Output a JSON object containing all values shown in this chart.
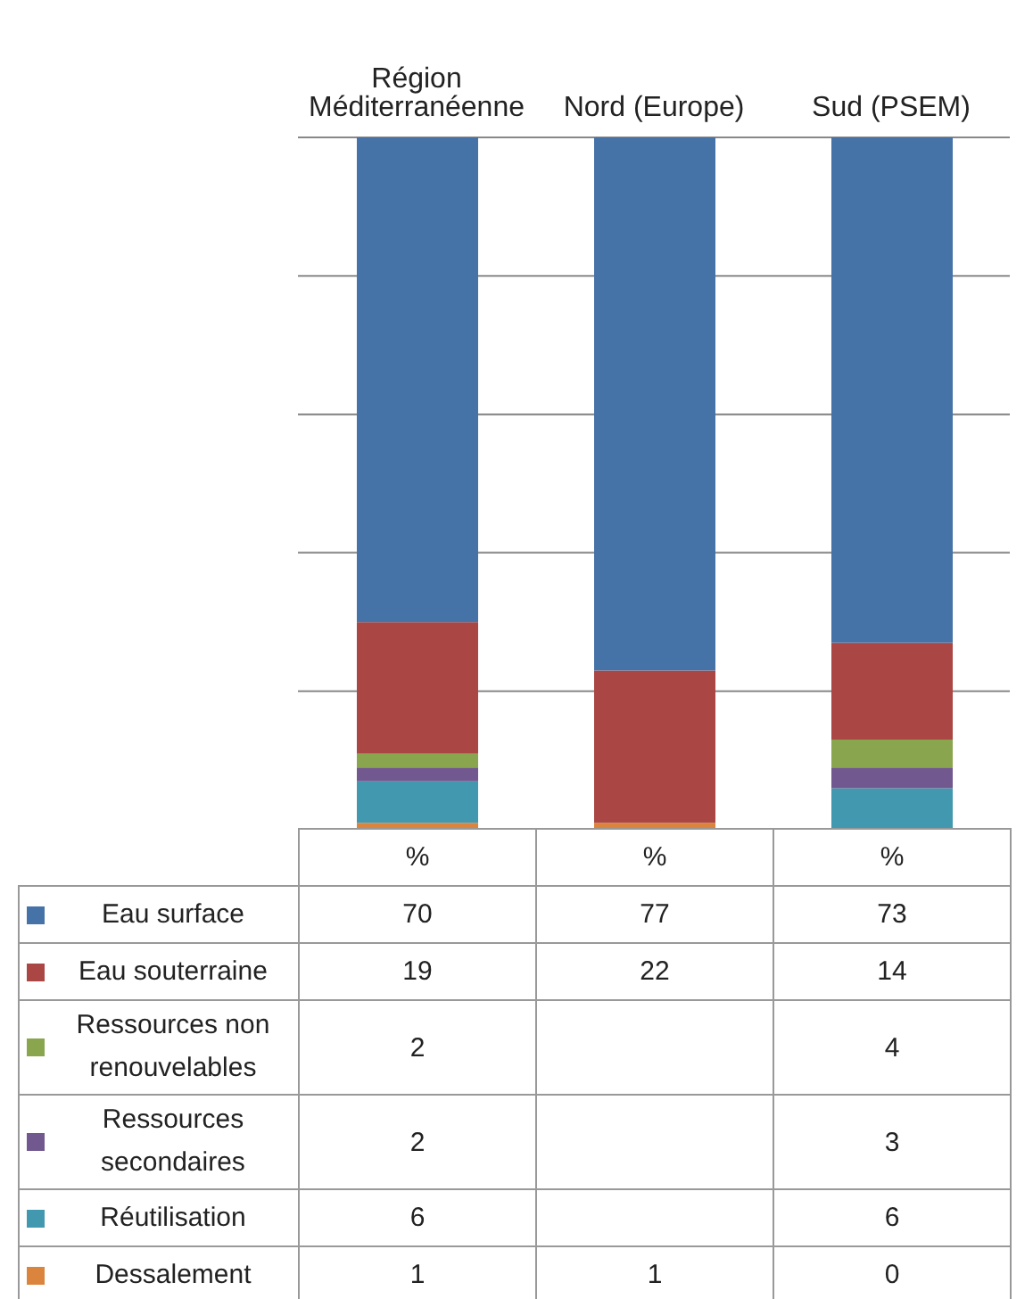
{
  "chart_data": {
    "type": "bar",
    "stacked": true,
    "categories": [
      "Région Méditerranéenne",
      "Nord (Europe)",
      "Sud (PSEM)"
    ],
    "series": [
      {
        "name": "Dessalement",
        "color": "#db843d",
        "values": [
          1,
          1,
          0
        ]
      },
      {
        "name": "Réutilisation",
        "color": "#4198af",
        "values": [
          6,
          null,
          6
        ]
      },
      {
        "name": "Ressources secondaires",
        "color": "#71588f",
        "values": [
          2,
          null,
          3
        ]
      },
      {
        "name": "Ressources non renouvelables",
        "color": "#89a54e",
        "values": [
          2,
          null,
          4
        ]
      },
      {
        "name": "Eau souterraine",
        "color": "#aa4643",
        "values": [
          19,
          22,
          14
        ]
      },
      {
        "name": "Eau surface",
        "color": "#4572a7",
        "values": [
          70,
          77,
          73
        ]
      }
    ],
    "annotations": [
      "%",
      "%",
      "%"
    ],
    "ylim": [
      0,
      100
    ],
    "yticks": [
      {
        "value": 20,
        "label": null
      },
      {
        "value": 40,
        "label": null
      },
      {
        "value": 60,
        "label": null
      },
      {
        "value": 80,
        "label": null
      },
      {
        "value": 100,
        "label": null
      }
    ],
    "grid": "y",
    "tick_labels": "x",
    "data_labels": true,
    "legend": "bottom"
  }
}
